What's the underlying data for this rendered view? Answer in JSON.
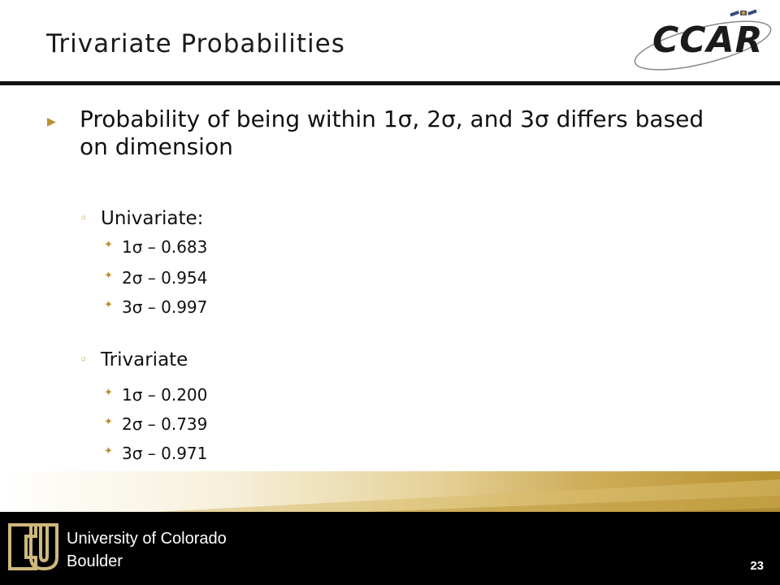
{
  "slide": {
    "title": "Trivariate Probabilities",
    "logo_text": "CCAR",
    "page_number": "23"
  },
  "bullets": {
    "main": "Probability of being within 1σ, 2σ, and 3σ differs based on dimension",
    "univariate": {
      "label": "Univariate:",
      "items": [
        "1σ – 0.683",
        "2σ – 0.954",
        "3σ – 0.997"
      ]
    },
    "trivariate": {
      "label": "Trivariate",
      "items": [
        "1σ – 0.200",
        "2σ – 0.739",
        "3σ – 0.971"
      ]
    }
  },
  "footer": {
    "university_line1": "University of Colorado",
    "university_line2": "Boulder"
  },
  "icons": {
    "level1": "triangle-right-icon",
    "level2": "ring-bullet-icon",
    "level3": "star-bullet-icon"
  },
  "colors": {
    "accent_gold": "#b8912f",
    "footer_black": "#000000"
  }
}
